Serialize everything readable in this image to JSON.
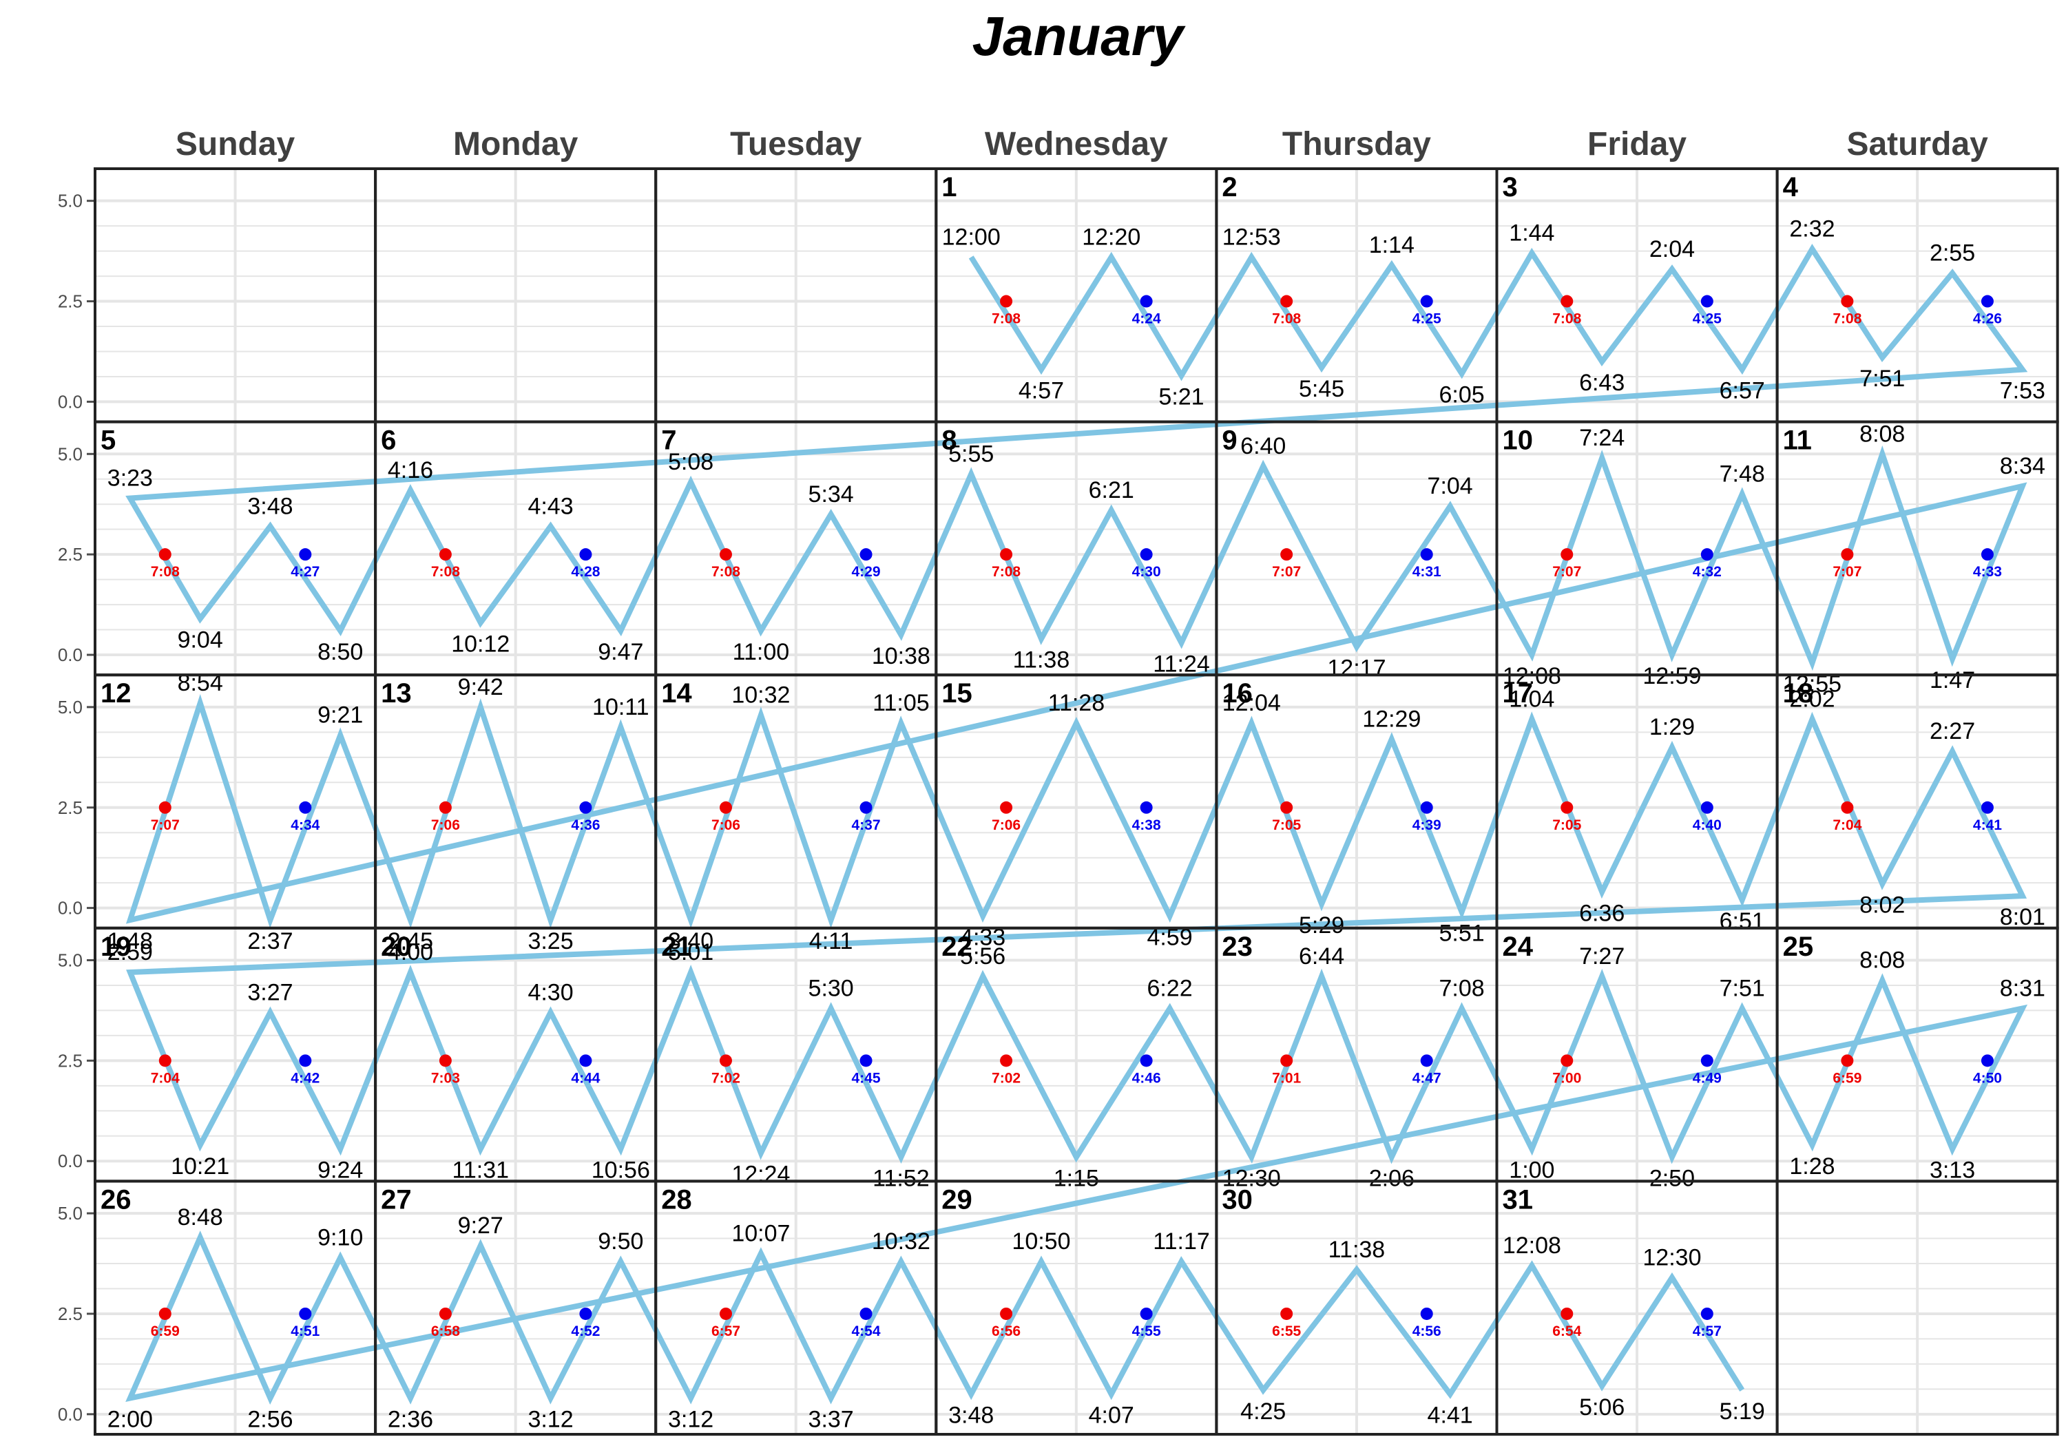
{
  "colors": {
    "tide_line": "#7fc4e3",
    "sunrise": "#ee0000",
    "sunset": "#0000ee",
    "grid": "#e5e5e5",
    "frame": "#222222"
  },
  "chart_data": {
    "type": "line",
    "title": "January",
    "weekdays": [
      "Sunday",
      "Monday",
      "Tuesday",
      "Wednesday",
      "Thursday",
      "Friday",
      "Saturday"
    ],
    "y_ticks": [
      "0.0",
      "2.5",
      "5.0"
    ],
    "ylim": [
      -0.5,
      5.8
    ],
    "first_weekday": 3,
    "days": [
      {
        "day": "1",
        "sunrise": "7:08",
        "sunset": "4:24",
        "tides": [
          {
            "time": "12:00",
            "y": 3.6,
            "pos": "above"
          },
          {
            "time": "4:57",
            "y": 0.8,
            "pos": "below"
          },
          {
            "time": "12:20",
            "y": 3.6,
            "pos": "above"
          },
          {
            "time": "5:21",
            "y": 0.65,
            "pos": "below"
          }
        ]
      },
      {
        "day": "2",
        "sunrise": "7:08",
        "sunset": "4:25",
        "tides": [
          {
            "time": "12:53",
            "y": 3.6,
            "pos": "above"
          },
          {
            "time": "5:45",
            "y": 0.85,
            "pos": "below"
          },
          {
            "time": "1:14",
            "y": 3.4,
            "pos": "above"
          },
          {
            "time": "6:05",
            "y": 0.7,
            "pos": "below"
          }
        ]
      },
      {
        "day": "3",
        "sunrise": "7:08",
        "sunset": "4:25",
        "tides": [
          {
            "time": "1:44",
            "y": 3.7,
            "pos": "above"
          },
          {
            "time": "6:43",
            "y": 1.0,
            "pos": "below"
          },
          {
            "time": "2:04",
            "y": 3.3,
            "pos": "above"
          },
          {
            "time": "6:57",
            "y": 0.8,
            "pos": "below"
          }
        ]
      },
      {
        "day": "4",
        "sunrise": "7:08",
        "sunset": "4:26",
        "tides": [
          {
            "time": "2:32",
            "y": 3.8,
            "pos": "above"
          },
          {
            "time": "7:51",
            "y": 1.1,
            "pos": "below"
          },
          {
            "time": "2:55",
            "y": 3.2,
            "pos": "above"
          },
          {
            "time": "7:53",
            "y": 0.8,
            "pos": "below"
          }
        ]
      },
      {
        "day": "5",
        "sunrise": "7:08",
        "sunset": "4:27",
        "tides": [
          {
            "time": "3:23",
            "y": 3.9,
            "pos": "above"
          },
          {
            "time": "9:04",
            "y": 0.9,
            "pos": "below"
          },
          {
            "time": "3:48",
            "y": 3.2,
            "pos": "above"
          },
          {
            "time": "8:50",
            "y": 0.6,
            "pos": "below"
          }
        ]
      },
      {
        "day": "6",
        "sunrise": "7:08",
        "sunset": "4:28",
        "tides": [
          {
            "time": "4:16",
            "y": 4.1,
            "pos": "above"
          },
          {
            "time": "10:12",
            "y": 0.8,
            "pos": "below"
          },
          {
            "time": "4:43",
            "y": 3.2,
            "pos": "above"
          },
          {
            "time": "9:47",
            "y": 0.6,
            "pos": "below"
          }
        ]
      },
      {
        "day": "7",
        "sunrise": "7:08",
        "sunset": "4:29",
        "tides": [
          {
            "time": "5:08",
            "y": 4.3,
            "pos": "above"
          },
          {
            "time": "11:00",
            "y": 0.6,
            "pos": "below"
          },
          {
            "time": "5:34",
            "y": 3.5,
            "pos": "above"
          },
          {
            "time": "10:38",
            "y": 0.5,
            "pos": "below"
          }
        ]
      },
      {
        "day": "8",
        "sunrise": "7:08",
        "sunset": "4:30",
        "tides": [
          {
            "time": "5:55",
            "y": 4.5,
            "pos": "above"
          },
          {
            "time": "11:38",
            "y": 0.4,
            "pos": "below"
          },
          {
            "time": "6:21",
            "y": 3.6,
            "pos": "above"
          },
          {
            "time": "11:24",
            "y": 0.3,
            "pos": "below"
          }
        ]
      },
      {
        "day": "9",
        "sunrise": "7:07",
        "sunset": "4:31",
        "tides": [
          {
            "time": "6:40",
            "y": 4.7,
            "pos": "above"
          },
          {
            "time": "12:17",
            "y": 0.2,
            "pos": "below"
          },
          {
            "time": "7:04",
            "y": 3.7,
            "pos": "above"
          }
        ]
      },
      {
        "day": "10",
        "sunrise": "7:07",
        "sunset": "4:32",
        "tides": [
          {
            "time": "12:08",
            "y": 0.0,
            "pos": "below"
          },
          {
            "time": "7:24",
            "y": 4.9,
            "pos": "above"
          },
          {
            "time": "12:59",
            "y": 0.0,
            "pos": "below"
          },
          {
            "time": "7:48",
            "y": 4.0,
            "pos": "above"
          }
        ]
      },
      {
        "day": "11",
        "sunrise": "7:07",
        "sunset": "4:33",
        "tides": [
          {
            "time": "12:55",
            "y": -0.2,
            "pos": "below"
          },
          {
            "time": "8:08",
            "y": 5.0,
            "pos": "above"
          },
          {
            "time": "1:47",
            "y": -0.1,
            "pos": "below"
          },
          {
            "time": "8:34",
            "y": 4.2,
            "pos": "above"
          }
        ]
      },
      {
        "day": "12",
        "sunrise": "7:07",
        "sunset": "4:34",
        "tides": [
          {
            "time": "1:48",
            "y": -0.3,
            "pos": "below"
          },
          {
            "time": "8:54",
            "y": 5.1,
            "pos": "above"
          },
          {
            "time": "2:37",
            "y": -0.3,
            "pos": "below"
          },
          {
            "time": "9:21",
            "y": 4.3,
            "pos": "above"
          }
        ]
      },
      {
        "day": "13",
        "sunrise": "7:06",
        "sunset": "4:36",
        "tides": [
          {
            "time": "2:45",
            "y": -0.3,
            "pos": "below"
          },
          {
            "time": "9:42",
            "y": 5.0,
            "pos": "above"
          },
          {
            "time": "3:25",
            "y": -0.3,
            "pos": "below"
          },
          {
            "time": "10:11",
            "y": 4.5,
            "pos": "above"
          }
        ]
      },
      {
        "day": "14",
        "sunrise": "7:06",
        "sunset": "4:37",
        "tides": [
          {
            "time": "3:40",
            "y": -0.3,
            "pos": "below"
          },
          {
            "time": "10:32",
            "y": 4.8,
            "pos": "above"
          },
          {
            "time": "4:11",
            "y": -0.3,
            "pos": "below"
          },
          {
            "time": "11:05",
            "y": 4.6,
            "pos": "above"
          }
        ]
      },
      {
        "day": "15",
        "sunrise": "7:06",
        "sunset": "4:38",
        "tides": [
          {
            "time": "4:33",
            "y": -0.2,
            "pos": "below"
          },
          {
            "time": "11:28",
            "y": 4.6,
            "pos": "above"
          },
          {
            "time": "4:59",
            "y": -0.2,
            "pos": "below"
          }
        ]
      },
      {
        "day": "16",
        "sunrise": "7:05",
        "sunset": "4:39",
        "tides": [
          {
            "time": "12:04",
            "y": 4.6,
            "pos": "above"
          },
          {
            "time": "5:29",
            "y": 0.1,
            "pos": "below"
          },
          {
            "time": "12:29",
            "y": 4.2,
            "pos": "above"
          },
          {
            "time": "5:51",
            "y": -0.1,
            "pos": "below"
          }
        ]
      },
      {
        "day": "17",
        "sunrise": "7:05",
        "sunset": "4:40",
        "tides": [
          {
            "time": "1:04",
            "y": 4.7,
            "pos": "above"
          },
          {
            "time": "6:36",
            "y": 0.4,
            "pos": "below"
          },
          {
            "time": "1:29",
            "y": 4.0,
            "pos": "above"
          },
          {
            "time": "6:51",
            "y": 0.2,
            "pos": "below"
          }
        ]
      },
      {
        "day": "18",
        "sunrise": "7:04",
        "sunset": "4:41",
        "tides": [
          {
            "time": "2:02",
            "y": 4.7,
            "pos": "above"
          },
          {
            "time": "8:02",
            "y": 0.6,
            "pos": "below"
          },
          {
            "time": "2:27",
            "y": 3.9,
            "pos": "above"
          },
          {
            "time": "8:01",
            "y": 0.3,
            "pos": "below"
          }
        ]
      },
      {
        "day": "19",
        "sunrise": "7:04",
        "sunset": "4:42",
        "tides": [
          {
            "time": "2:59",
            "y": 4.7,
            "pos": "above"
          },
          {
            "time": "10:21",
            "y": 0.4,
            "pos": "below"
          },
          {
            "time": "3:27",
            "y": 3.7,
            "pos": "above"
          },
          {
            "time": "9:24",
            "y": 0.3,
            "pos": "below"
          }
        ]
      },
      {
        "day": "20",
        "sunrise": "7:03",
        "sunset": "4:44",
        "tides": [
          {
            "time": "4:00",
            "y": 4.7,
            "pos": "above"
          },
          {
            "time": "11:31",
            "y": 0.3,
            "pos": "below"
          },
          {
            "time": "4:30",
            "y": 3.7,
            "pos": "above"
          },
          {
            "time": "10:56",
            "y": 0.3,
            "pos": "below"
          }
        ]
      },
      {
        "day": "21",
        "sunrise": "7:02",
        "sunset": "4:45",
        "tides": [
          {
            "time": "5:01",
            "y": 4.7,
            "pos": "above"
          },
          {
            "time": "12:24",
            "y": 0.2,
            "pos": "below"
          },
          {
            "time": "5:30",
            "y": 3.8,
            "pos": "above"
          },
          {
            "time": "11:52",
            "y": 0.1,
            "pos": "below"
          }
        ]
      },
      {
        "day": "22",
        "sunrise": "7:02",
        "sunset": "4:46",
        "tides": [
          {
            "time": "5:56",
            "y": 4.6,
            "pos": "above"
          },
          {
            "time": "1:15",
            "y": 0.1,
            "pos": "below"
          },
          {
            "time": "6:22",
            "y": 3.8,
            "pos": "above"
          }
        ]
      },
      {
        "day": "23",
        "sunrise": "7:01",
        "sunset": "4:47",
        "tides": [
          {
            "time": "12:30",
            "y": 0.1,
            "pos": "below"
          },
          {
            "time": "6:44",
            "y": 4.6,
            "pos": "above"
          },
          {
            "time": "2:06",
            "y": 0.1,
            "pos": "below"
          },
          {
            "time": "7:08",
            "y": 3.8,
            "pos": "above"
          }
        ]
      },
      {
        "day": "24",
        "sunrise": "7:00",
        "sunset": "4:49",
        "tides": [
          {
            "time": "1:00",
            "y": 0.3,
            "pos": "below"
          },
          {
            "time": "7:27",
            "y": 4.6,
            "pos": "above"
          },
          {
            "time": "2:50",
            "y": 0.1,
            "pos": "below"
          },
          {
            "time": "7:51",
            "y": 3.8,
            "pos": "above"
          }
        ]
      },
      {
        "day": "25",
        "sunrise": "6:59",
        "sunset": "4:50",
        "tides": [
          {
            "time": "1:28",
            "y": 0.4,
            "pos": "below"
          },
          {
            "time": "8:08",
            "y": 4.5,
            "pos": "above"
          },
          {
            "time": "3:13",
            "y": 0.3,
            "pos": "below"
          },
          {
            "time": "8:31",
            "y": 3.8,
            "pos": "above"
          }
        ]
      },
      {
        "day": "26",
        "sunrise": "6:59",
        "sunset": "4:51",
        "tides": [
          {
            "time": "2:00",
            "y": 0.4,
            "pos": "below"
          },
          {
            "time": "8:48",
            "y": 4.4,
            "pos": "above"
          },
          {
            "time": "2:56",
            "y": 0.4,
            "pos": "below"
          },
          {
            "time": "9:10",
            "y": 3.9,
            "pos": "above"
          }
        ]
      },
      {
        "day": "27",
        "sunrise": "6:58",
        "sunset": "4:52",
        "tides": [
          {
            "time": "2:36",
            "y": 0.4,
            "pos": "below"
          },
          {
            "time": "9:27",
            "y": 4.2,
            "pos": "above"
          },
          {
            "time": "3:12",
            "y": 0.4,
            "pos": "below"
          },
          {
            "time": "9:50",
            "y": 3.8,
            "pos": "above"
          }
        ]
      },
      {
        "day": "28",
        "sunrise": "6:57",
        "sunset": "4:54",
        "tides": [
          {
            "time": "3:12",
            "y": 0.4,
            "pos": "below"
          },
          {
            "time": "10:07",
            "y": 4.0,
            "pos": "above"
          },
          {
            "time": "3:37",
            "y": 0.4,
            "pos": "below"
          },
          {
            "time": "10:32",
            "y": 3.8,
            "pos": "above"
          }
        ]
      },
      {
        "day": "29",
        "sunrise": "6:56",
        "sunset": "4:55",
        "tides": [
          {
            "time": "3:48",
            "y": 0.5,
            "pos": "below"
          },
          {
            "time": "10:50",
            "y": 3.8,
            "pos": "above"
          },
          {
            "time": "4:07",
            "y": 0.5,
            "pos": "below"
          },
          {
            "time": "11:17",
            "y": 3.8,
            "pos": "above"
          }
        ]
      },
      {
        "day": "30",
        "sunrise": "6:55",
        "sunset": "4:56",
        "tides": [
          {
            "time": "4:25",
            "y": 0.6,
            "pos": "below"
          },
          {
            "time": "11:38",
            "y": 3.6,
            "pos": "above"
          },
          {
            "time": "4:41",
            "y": 0.5,
            "pos": "below"
          }
        ]
      },
      {
        "day": "31",
        "sunrise": "6:54",
        "sunset": "4:57",
        "tides": [
          {
            "time": "12:08",
            "y": 3.7,
            "pos": "above"
          },
          {
            "time": "5:06",
            "y": 0.7,
            "pos": "below"
          },
          {
            "time": "12:30",
            "y": 3.4,
            "pos": "above"
          },
          {
            "time": "5:19",
            "y": 0.6,
            "pos": "below"
          }
        ]
      }
    ]
  }
}
